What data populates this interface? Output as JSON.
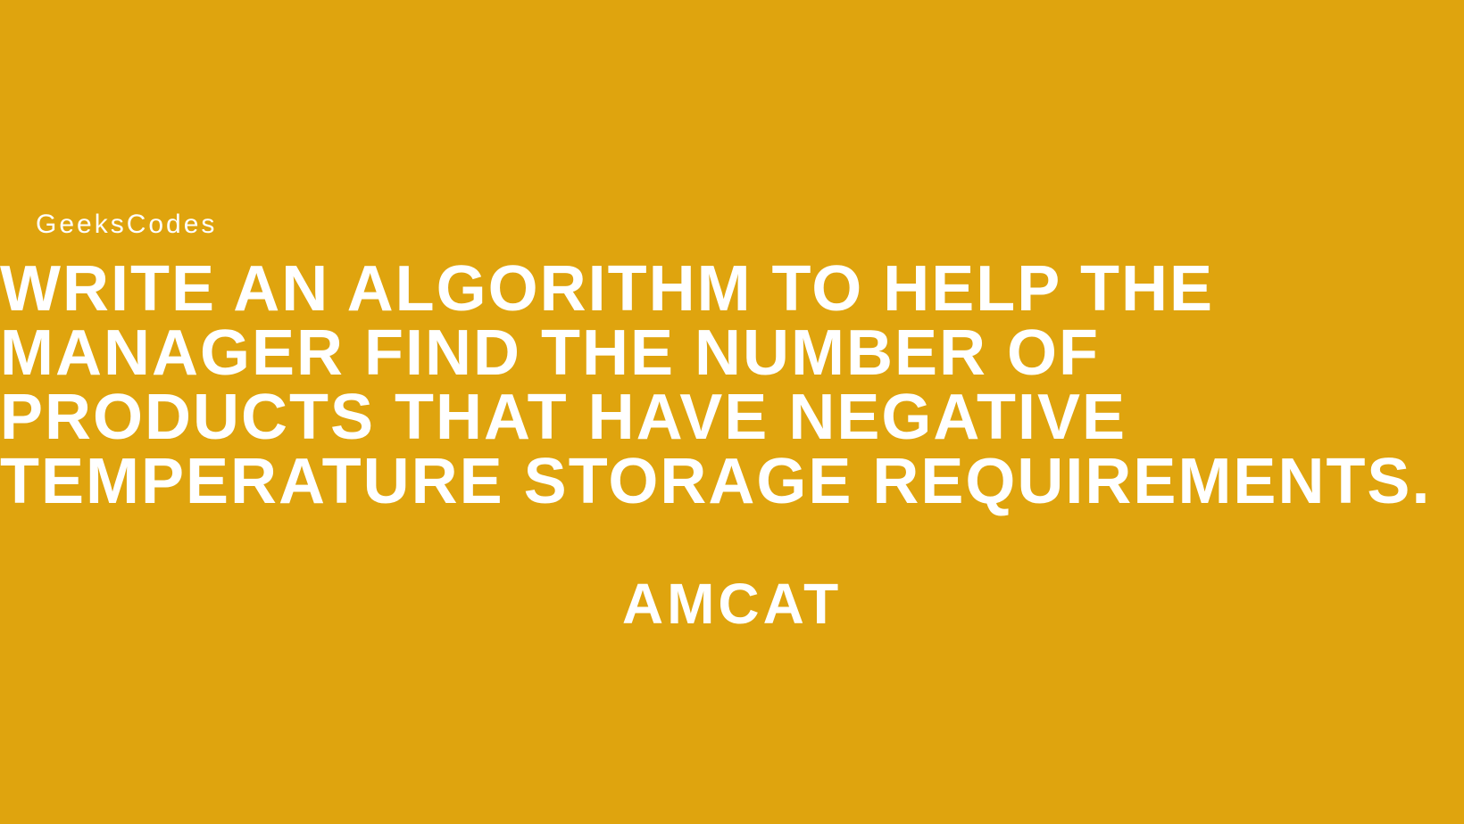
{
  "brand": "GeeksCodes",
  "headline": "WRITE AN ALGORITHM TO HELP THE MANAGER FIND THE NUMBER OF PRODUCTS THAT HAVE NEGATIVE TEMPERATURE STORAGE REQUIREMENTS.",
  "footer": "AMCAT",
  "colors": {
    "background": "#dfa40e",
    "text": "#ffffff"
  },
  "typography": {
    "brand_fontsize": 30,
    "brand_letterspacing": 3,
    "headline_fontsize": 72,
    "headline_weight": 900,
    "headline_letterspacing": 2,
    "footer_fontsize": 64,
    "footer_weight": 900,
    "footer_letterspacing": 4
  }
}
